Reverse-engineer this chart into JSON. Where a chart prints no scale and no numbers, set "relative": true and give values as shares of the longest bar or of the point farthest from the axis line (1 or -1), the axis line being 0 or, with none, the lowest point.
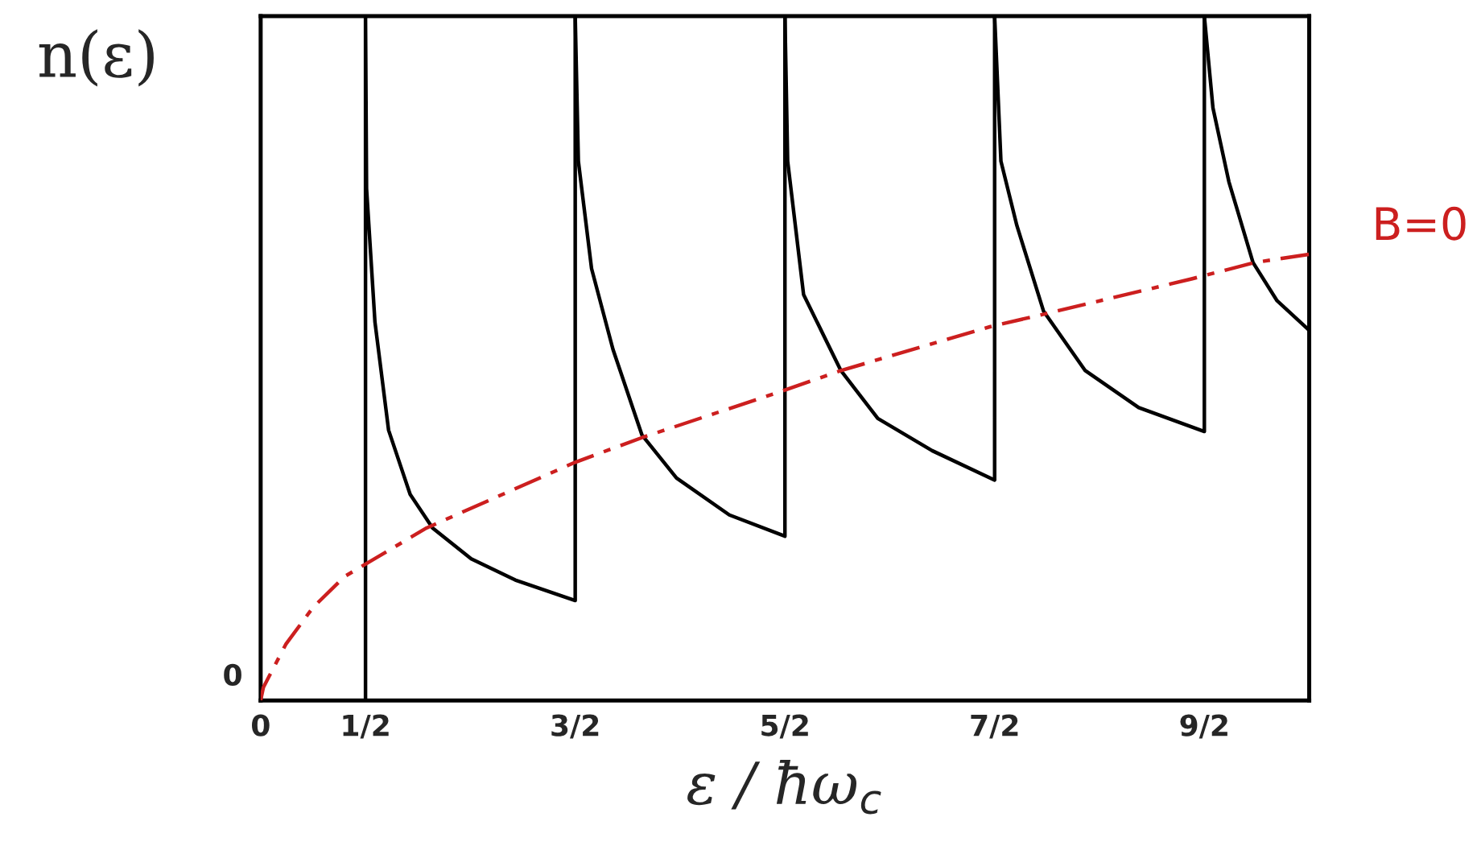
{
  "chart_data": {
    "type": "line",
    "relative": true,
    "ylabel": "n(ε)",
    "xlabel": "ε / ħω$_{c}$",
    "xlim": [
      0,
      5
    ],
    "xticks": [
      0,
      {
        "value": 0.5,
        "label": "1/2"
      },
      {
        "value": 1.5,
        "label": "3/2"
      },
      {
        "value": 2.5,
        "label": "5/2"
      },
      {
        "value": 3.5,
        "label": "7/2"
      },
      {
        "value": 4.5,
        "label": "9/2"
      }
    ],
    "annotations": [
      {
        "text": "0",
        "x": 0,
        "y": 0
      }
    ],
    "legend": false,
    "grid": false,
    "marker": "none",
    "series": [
      {
        "color": "#000000",
        "line_style": "solid",
        "x": [
          0.5,
          0.5,
          0.505,
          0.545,
          0.61,
          0.713,
          0.82,
          1.004,
          1.214,
          1.5,
          1.5
        ],
        "values": [
          0,
          1.0,
          0.748,
          0.553,
          0.395,
          0.301,
          0.252,
          0.207,
          0.176,
          0.146,
          1.0
        ]
      },
      {
        "color": "#000000",
        "line_style": "solid",
        "x": [
          1.5,
          1.515,
          1.578,
          1.68,
          1.818,
          1.983,
          2.235,
          2.5,
          2.5
        ],
        "values": [
          1.0,
          0.788,
          0.631,
          0.513,
          0.388,
          0.325,
          0.271,
          0.24,
          1.0
        ]
      },
      {
        "color": "#000000",
        "line_style": "solid",
        "x": [
          2.5,
          2.513,
          2.589,
          2.767,
          2.943,
          3.202,
          3.5,
          3.5
        ],
        "values": [
          1.0,
          0.788,
          0.593,
          0.482,
          0.412,
          0.365,
          0.322,
          1.0
        ]
      },
      {
        "color": "#000000",
        "line_style": "solid",
        "x": [
          3.5,
          3.53,
          3.606,
          3.733,
          3.932,
          4.187,
          4.5,
          4.5
        ],
        "values": [
          1.0,
          0.788,
          0.694,
          0.569,
          0.482,
          0.428,
          0.393,
          1.0
        ]
      },
      {
        "color": "#000000",
        "line_style": "solid",
        "x": [
          4.5,
          4.541,
          4.617,
          4.732,
          4.847,
          5.0
        ],
        "values": [
          1.0,
          0.866,
          0.758,
          0.64,
          0.584,
          0.541
        ]
      },
      {
        "name": "B=0",
        "color": "#cc1f1f",
        "line_style": "dashed",
        "x": [
          0,
          0.013,
          0.12,
          0.25,
          0.4,
          0.791,
          1.5,
          1.818,
          2.485,
          2.767,
          3.477,
          3.742,
          4.439,
          4.742,
          5.0
        ],
        "values": [
          0,
          0.019,
          0.082,
          0.136,
          0.181,
          0.252,
          0.348,
          0.384,
          0.452,
          0.482,
          0.546,
          0.565,
          0.616,
          0.64,
          0.652
        ]
      }
    ]
  }
}
